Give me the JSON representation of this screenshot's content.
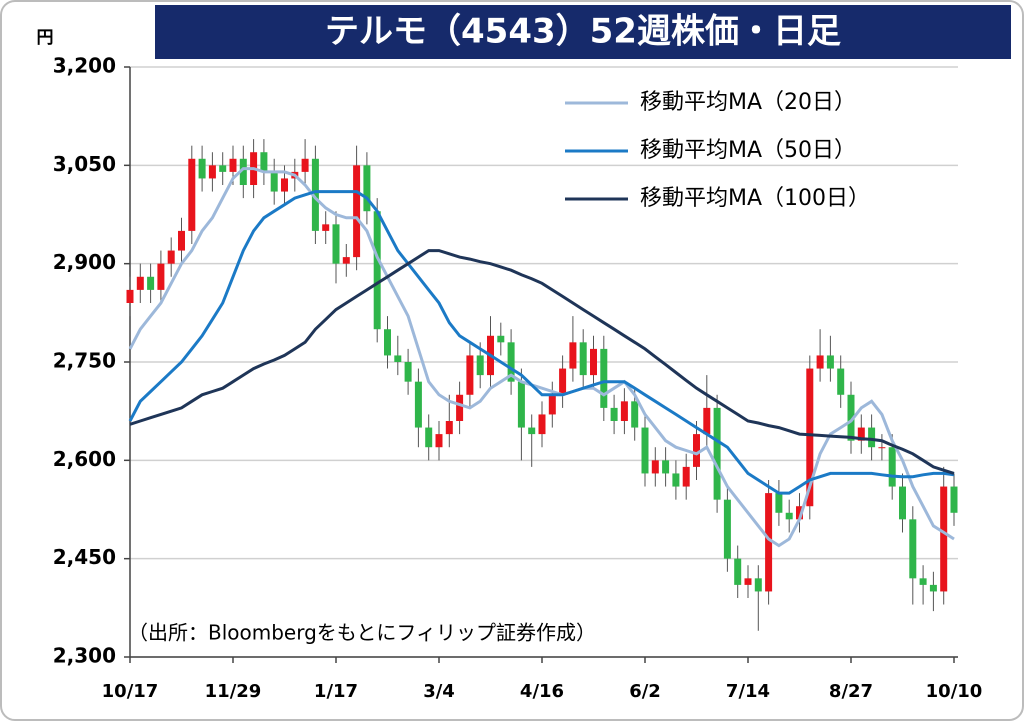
{
  "chart_data": {
    "type": "candlestick",
    "title": "テルモ（4543）52週株価・日足",
    "y_unit": "円",
    "source": "（出所：Bloombergをもとにフィリップ証券作成）",
    "categories": [
      "10/17",
      null,
      null,
      null,
      null,
      null,
      null,
      null,
      null,
      null,
      "11/29",
      null,
      null,
      null,
      null,
      null,
      null,
      null,
      null,
      null,
      "1/17",
      null,
      null,
      null,
      null,
      null,
      null,
      null,
      null,
      null,
      "3/4",
      null,
      null,
      null,
      null,
      null,
      null,
      null,
      null,
      null,
      "4/16",
      null,
      null,
      null,
      null,
      null,
      null,
      null,
      null,
      null,
      "6/2",
      null,
      null,
      null,
      null,
      null,
      null,
      null,
      null,
      null,
      "7/14",
      null,
      null,
      null,
      null,
      null,
      null,
      null,
      null,
      null,
      "8/27",
      null,
      null,
      null,
      null,
      null,
      null,
      null,
      null,
      null,
      "10/10"
    ],
    "ohlc": {
      "open": [
        2840,
        2860,
        2880,
        2860,
        2900,
        2920,
        2950,
        3060,
        3030,
        3050,
        3040,
        3060,
        3020,
        3070,
        3040,
        3010,
        3030,
        3040,
        3060,
        2950,
        2960,
        2900,
        2910,
        3050,
        2980,
        2800,
        2760,
        2750,
        2720,
        2650,
        2620,
        2640,
        2660,
        2700,
        2760,
        2730,
        2790,
        2780,
        2720,
        2650,
        2640,
        2670,
        2700,
        2740,
        2780,
        2730,
        2770,
        2680,
        2660,
        2690,
        2650,
        2580,
        2600,
        2580,
        2560,
        2590,
        2640,
        2680,
        2540,
        2450,
        2410,
        2420,
        2400,
        2550,
        2520,
        2510,
        2530,
        2740,
        2760,
        2740,
        2700,
        2630,
        2650,
        2620,
        2620,
        2560,
        2510,
        2420,
        2410,
        2400,
        2560
      ],
      "high": [
        2880,
        2900,
        2900,
        2920,
        2940,
        2970,
        3080,
        3080,
        3070,
        3070,
        3080,
        3080,
        3090,
        3090,
        3060,
        3050,
        3060,
        3090,
        3080,
        2980,
        2980,
        2930,
        3080,
        3070,
        3000,
        2820,
        2790,
        2770,
        2740,
        2670,
        2660,
        2700,
        2720,
        2780,
        2780,
        2820,
        2810,
        2800,
        2740,
        2670,
        2690,
        2720,
        2760,
        2820,
        2800,
        2790,
        2790,
        2700,
        2710,
        2710,
        2670,
        2620,
        2620,
        2600,
        2610,
        2660,
        2730,
        2700,
        2560,
        2470,
        2440,
        2440,
        2570,
        2570,
        2540,
        2550,
        2760,
        2800,
        2790,
        2760,
        2720,
        2670,
        2670,
        2640,
        2640,
        2580,
        2530,
        2440,
        2430,
        2590,
        2580
      ],
      "low": [
        2820,
        2840,
        2840,
        2840,
        2880,
        2900,
        2930,
        3010,
        3010,
        3020,
        3020,
        3000,
        3000,
        3020,
        2990,
        2990,
        3010,
        3020,
        2930,
        2930,
        2870,
        2880,
        2890,
        2960,
        2780,
        2740,
        2730,
        2700,
        2620,
        2600,
        2600,
        2620,
        2640,
        2680,
        2710,
        2710,
        2760,
        2700,
        2600,
        2590,
        2620,
        2650,
        2680,
        2720,
        2710,
        2710,
        2660,
        2640,
        2640,
        2630,
        2560,
        2560,
        2560,
        2540,
        2540,
        2570,
        2620,
        2520,
        2430,
        2390,
        2390,
        2340,
        2380,
        2500,
        2490,
        2490,
        2510,
        2720,
        2720,
        2680,
        2610,
        2610,
        2600,
        2600,
        2540,
        2490,
        2380,
        2380,
        2370,
        2380,
        2500
      ],
      "close": [
        2860,
        2880,
        2860,
        2900,
        2920,
        2950,
        3060,
        3030,
        3050,
        3040,
        3060,
        3020,
        3070,
        3040,
        3010,
        3030,
        3040,
        3060,
        2950,
        2960,
        2900,
        2910,
        3050,
        2980,
        2800,
        2760,
        2750,
        2720,
        2650,
        2620,
        2640,
        2660,
        2700,
        2760,
        2730,
        2790,
        2780,
        2720,
        2650,
        2640,
        2670,
        2700,
        2740,
        2780,
        2730,
        2770,
        2680,
        2660,
        2690,
        2650,
        2580,
        2600,
        2580,
        2560,
        2590,
        2640,
        2680,
        2540,
        2450,
        2410,
        2420,
        2400,
        2550,
        2520,
        2510,
        2530,
        2740,
        2760,
        2740,
        2700,
        2630,
        2650,
        2620,
        2620,
        2560,
        2510,
        2420,
        2410,
        2400,
        2560,
        2520
      ],
      "up_color": "#e8141c",
      "down_color": "#2fb54a"
    },
    "series": [
      {
        "name": "移動平均MA（20日）",
        "color": "#9db8da",
        "values": [
          2770,
          2800,
          2820,
          2840,
          2870,
          2900,
          2920,
          2950,
          2970,
          3000,
          3030,
          3045,
          3045,
          3040,
          3040,
          3040,
          3035,
          3020,
          3000,
          2985,
          2975,
          2970,
          2970,
          2950,
          2910,
          2880,
          2850,
          2820,
          2770,
          2720,
          2700,
          2690,
          2685,
          2680,
          2690,
          2710,
          2720,
          2730,
          2720,
          2715,
          2710,
          2705,
          2700,
          2705,
          2710,
          2710,
          2700,
          2710,
          2720,
          2700,
          2670,
          2650,
          2630,
          2620,
          2615,
          2610,
          2620,
          2590,
          2560,
          2540,
          2520,
          2500,
          2480,
          2470,
          2480,
          2510,
          2560,
          2610,
          2640,
          2650,
          2660,
          2680,
          2690,
          2670,
          2630,
          2600,
          2560,
          2530,
          2500,
          2490,
          2480
        ]
      },
      {
        "name": "移動平均MA（50日）",
        "color": "#1b7ac6",
        "values": [
          2660,
          2690,
          2705,
          2720,
          2735,
          2750,
          2770,
          2790,
          2815,
          2840,
          2880,
          2920,
          2950,
          2970,
          2980,
          2990,
          3000,
          3005,
          3010,
          3010,
          3010,
          3010,
          3010,
          3000,
          2980,
          2950,
          2920,
          2900,
          2880,
          2860,
          2840,
          2810,
          2790,
          2780,
          2770,
          2760,
          2750,
          2740,
          2730,
          2715,
          2700,
          2700,
          2700,
          2705,
          2710,
          2715,
          2720,
          2720,
          2720,
          2710,
          2700,
          2690,
          2680,
          2670,
          2660,
          2650,
          2640,
          2630,
          2620,
          2600,
          2580,
          2570,
          2560,
          2550,
          2550,
          2560,
          2570,
          2575,
          2580,
          2580,
          2580,
          2580,
          2580,
          2578,
          2576,
          2575,
          2575,
          2578,
          2580,
          2580,
          2578
        ]
      },
      {
        "name": "移動平均MA（100日）",
        "color": "#1f3558",
        "values": [
          2655,
          2660,
          2665,
          2670,
          2675,
          2680,
          2690,
          2700,
          2705,
          2710,
          2720,
          2730,
          2740,
          2747,
          2753,
          2760,
          2770,
          2780,
          2800,
          2815,
          2830,
          2840,
          2850,
          2860,
          2870,
          2880,
          2890,
          2900,
          2910,
          2920,
          2920,
          2915,
          2910,
          2907,
          2903,
          2900,
          2895,
          2890,
          2883,
          2877,
          2870,
          2860,
          2850,
          2840,
          2830,
          2820,
          2810,
          2800,
          2790,
          2780,
          2770,
          2758,
          2746,
          2734,
          2722,
          2710,
          2700,
          2690,
          2680,
          2670,
          2660,
          2657,
          2653,
          2650,
          2645,
          2640,
          2639,
          2638,
          2637,
          2636,
          2635,
          2633,
          2632,
          2630,
          2623,
          2617,
          2610,
          2600,
          2590,
          2585,
          2580
        ]
      }
    ],
    "ylim": [
      2300,
      3200
    ],
    "yticks": [
      {
        "value": 2300,
        "label": "2,300"
      },
      {
        "value": 2450,
        "label": "2,450"
      },
      {
        "value": 2600,
        "label": "2,600"
      },
      {
        "value": 2750,
        "label": "2,750"
      },
      {
        "value": 2900,
        "label": "2,900"
      },
      {
        "value": 3050,
        "label": "3,050"
      },
      {
        "value": 3200,
        "label": "3,200"
      }
    ],
    "grid": true
  }
}
